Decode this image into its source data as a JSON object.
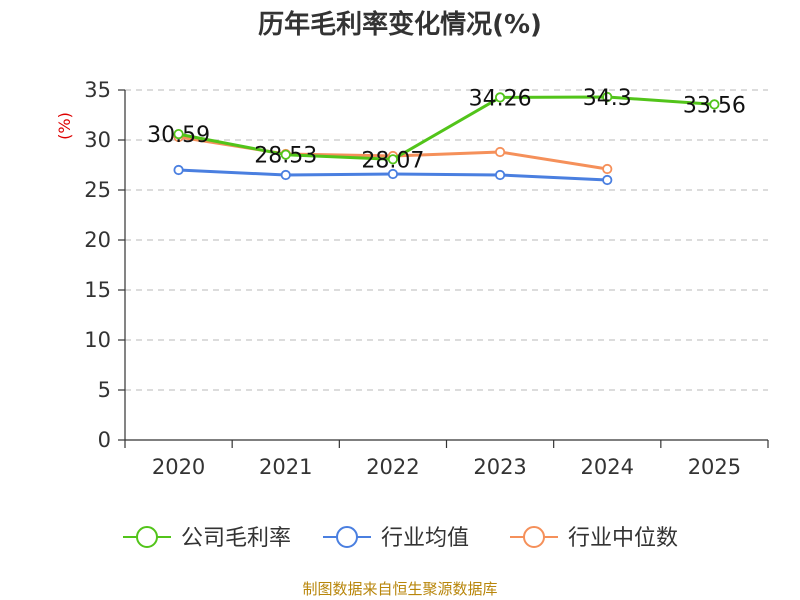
{
  "chart_data": {
    "type": "line",
    "title": "历年毛利率变化情况(%)",
    "ylabel": "(%)",
    "xlabel": "",
    "categories": [
      "2020",
      "2021",
      "2022",
      "2023",
      "2024",
      "2025"
    ],
    "ylim": [
      0,
      35
    ],
    "yticks": [
      "0",
      "5",
      "10",
      "15",
      "20",
      "25",
      "30",
      "35"
    ],
    "grid": true,
    "legend_position": "bottom",
    "series": [
      {
        "name": "公司毛利率",
        "color": "#52c41a",
        "values": [
          30.59,
          28.53,
          28.07,
          34.26,
          34.3,
          33.56
        ],
        "labels": [
          "30.59",
          "28.53",
          "28.07",
          "34.26",
          "34.3",
          "33.56"
        ]
      },
      {
        "name": "行业均值",
        "color": "#4a7fe0",
        "values": [
          27.0,
          26.5,
          26.6,
          26.5,
          26.0,
          null
        ]
      },
      {
        "name": "行业中位数",
        "color": "#f5905a",
        "values": [
          30.3,
          28.6,
          28.4,
          28.8,
          27.1,
          null
        ]
      }
    ]
  },
  "footer": "制图数据来自恒生聚源数据库"
}
